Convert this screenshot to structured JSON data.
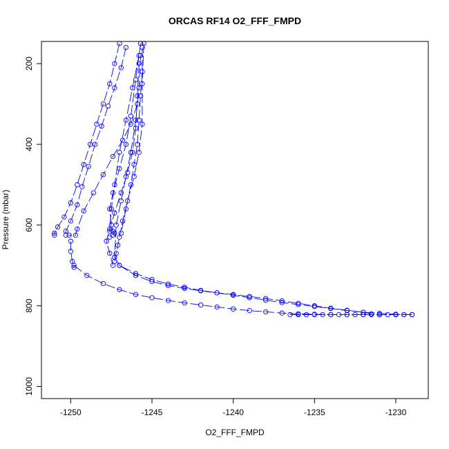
{
  "chart_data": {
    "type": "scatter",
    "title": "ORCAS RF14 O2_FFF_FMPD",
    "xlabel": "O2_FFF_FMPD",
    "ylabel": "Pressure (mbar)",
    "xlim": [
      -1251.8,
      -1228.0
    ],
    "ylim": [
      1030,
      145
    ],
    "y_reversed": true,
    "grid": false,
    "legend": "none",
    "xticks": [
      -1250,
      -1245,
      -1240,
      -1235,
      -1230
    ],
    "xtick_labels": [
      "-1250",
      "-1245",
      "-1240",
      "-1235",
      "-1230"
    ],
    "yticks": [
      200,
      400,
      600,
      800,
      1000
    ],
    "ytick_labels": [
      "200",
      "400",
      "600",
      "800",
      "1000"
    ],
    "marker": "open-circle",
    "line_style": "dashed",
    "colors": {
      "series": "#0000ff",
      "axes": "#000000",
      "background": "#ffffff"
    },
    "series": [
      {
        "x": [
          -1247.0,
          -1247.3,
          -1247.6,
          -1248.0,
          -1248.4,
          -1248.8,
          -1249.2,
          -1249.6,
          -1250.0,
          -1250.4,
          -1250.8,
          -1251.0,
          -1251.0
        ],
        "y": [
          150,
          200,
          250,
          300,
          350,
          400,
          450,
          500,
          545,
          580,
          605,
          620,
          625
        ]
      },
      {
        "x": [
          -1246.6,
          -1246.9,
          -1247.3,
          -1247.7,
          -1248.1,
          -1248.5,
          -1248.9,
          -1249.3,
          -1249.6,
          -1250.0,
          -1250.3,
          -1250.3
        ],
        "y": [
          160,
          210,
          260,
          305,
          355,
          400,
          455,
          505,
          550,
          590,
          615,
          625
        ]
      },
      {
        "x": [
          -1245.9,
          -1246.3,
          -1246.8,
          -1247.4,
          -1248.0,
          -1248.6,
          -1249.2,
          -1249.6,
          -1249.7,
          -1250.1
        ],
        "y": [
          300,
          350,
          390,
          430,
          475,
          520,
          565,
          610,
          625,
          625
        ]
      },
      {
        "x": [
          -1245.8,
          -1246.2,
          -1246.6,
          -1247.0,
          -1247.3,
          -1247.5,
          -1247.6
        ],
        "y": [
          180,
          260,
          340,
          420,
          500,
          560,
          615
        ]
      },
      {
        "x": [
          -1245.7,
          -1246.0,
          -1246.3,
          -1246.6,
          -1247.0,
          -1247.4,
          -1247.6,
          -1247.5,
          -1247.4,
          -1247.3,
          -1247.4,
          -1247.6
        ],
        "y": [
          150,
          240,
          330,
          400,
          460,
          520,
          560,
          600,
          615,
          620,
          625,
          630
        ]
      },
      {
        "x": [
          -1245.8,
          -1245.9,
          -1246.0,
          -1246.2,
          -1246.5,
          -1246.9,
          -1247.3,
          -1247.6,
          -1247.8,
          -1247.6,
          -1247.4
        ],
        "y": [
          200,
          280,
          360,
          420,
          470,
          520,
          570,
          610,
          640,
          670,
          700
        ]
      },
      {
        "x": [
          -1245.5,
          -1245.6,
          -1245.6,
          -1245.8,
          -1246.1,
          -1246.5,
          -1246.8,
          -1247.0,
          -1247.1,
          -1247.2,
          -1247.3
        ],
        "y": [
          150,
          250,
          350,
          420,
          480,
          540,
          590,
          630,
          650,
          670,
          690
        ]
      },
      {
        "x": [
          -1245.6,
          -1245.6,
          -1245.7,
          -1245.8,
          -1245.9,
          -1246.1,
          -1246.3,
          -1246.6,
          -1246.9
        ],
        "y": [
          160,
          220,
          280,
          340,
          400,
          450,
          500,
          560,
          620
        ]
      },
      {
        "x": [
          -1245.7,
          -1245.8,
          -1246.0,
          -1246.3,
          -1246.6,
          -1246.9,
          -1247.2,
          -1247.3
        ],
        "y": [
          180,
          260,
          340,
          420,
          480,
          540,
          600,
          680
        ]
      },
      {
        "x": [
          -1247.3,
          -1247.0,
          -1246.0,
          -1245.0,
          -1244.0,
          -1243.0,
          -1242.0,
          -1241.0,
          -1240.0,
          -1239.0,
          -1238.0,
          -1237.0,
          -1236.0,
          -1235.0,
          -1234.0,
          -1233.0,
          -1232.0,
          -1231.0,
          -1230.0,
          -1229.0
        ],
        "y": [
          680,
          700,
          720,
          735,
          746,
          754,
          762,
          768,
          774,
          780,
          786,
          792,
          797,
          802,
          807,
          812,
          816,
          819,
          821,
          822
        ]
      },
      {
        "x": [
          -1247.0,
          -1246.0,
          -1245.0,
          -1244.0,
          -1243.0,
          -1242.0,
          -1241.0,
          -1240.0,
          -1239.0,
          -1238.0,
          -1237.0,
          -1236.0,
          -1235.0,
          -1234.0,
          -1233.0,
          -1232.0,
          -1231.5
        ],
        "y": [
          700,
          725,
          740,
          750,
          757,
          763,
          768,
          772,
          777,
          782,
          788,
          794,
          800,
          806,
          811,
          816,
          820
        ]
      },
      {
        "x": [
          -1249.8,
          -1249.0,
          -1248.0,
          -1247.0,
          -1246.0,
          -1245.0,
          -1244.0,
          -1243.0,
          -1242.0,
          -1241.0,
          -1240.0,
          -1239.0,
          -1238.0,
          -1237.0,
          -1236.0,
          -1235.0,
          -1234.0,
          -1233.0,
          -1232.0,
          -1231.0,
          -1230.0,
          -1229.5,
          -1229.0
        ],
        "y": [
          700,
          725,
          745,
          760,
          772,
          780,
          787,
          793,
          798,
          803,
          808,
          812,
          815,
          818,
          820,
          821,
          822,
          822,
          822,
          822,
          822,
          822,
          822
        ]
      },
      {
        "x": [
          -1250.0,
          -1250.0,
          -1249.9,
          -1249.8
        ],
        "y": [
          640,
          665,
          690,
          705
        ]
      },
      {
        "x": [
          -1236.5,
          -1236.0,
          -1235.5,
          -1235.0,
          -1234.5,
          -1234.0,
          -1233.5,
          -1233.0,
          -1232.5,
          -1232.0,
          -1231.5,
          -1231.0,
          -1230.5,
          -1230.0,
          -1229.5,
          -1229.0
        ],
        "y": [
          822,
          822,
          822,
          822,
          822,
          822,
          822,
          822,
          822,
          822,
          822,
          822,
          822,
          822,
          822,
          822
        ]
      }
    ]
  }
}
